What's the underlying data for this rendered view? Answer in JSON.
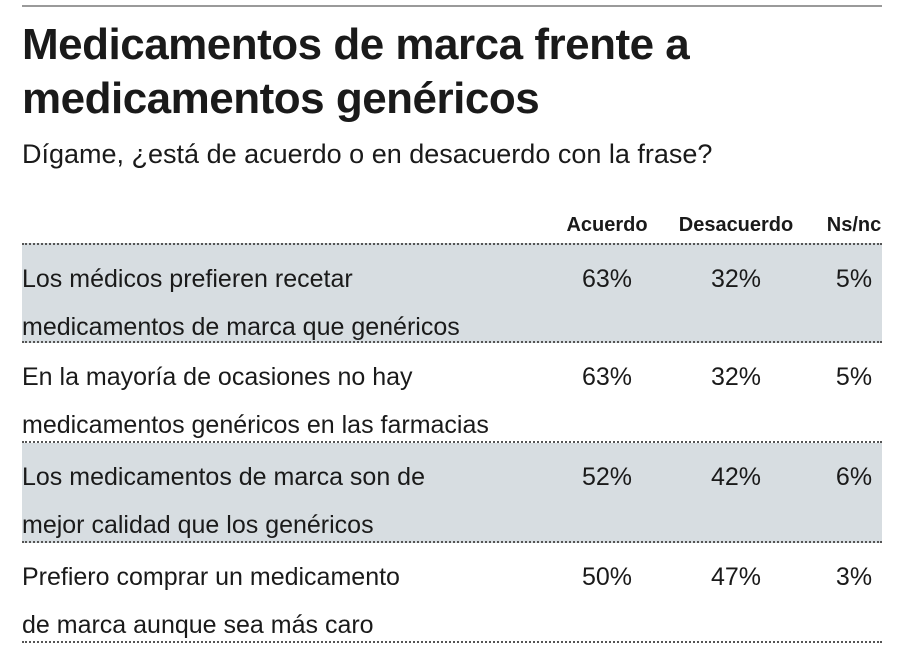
{
  "header": {
    "title": [
      "Medicamentos de marca frente a",
      "medicamentos genéricos"
    ],
    "subtitle": "Dígame, ¿está de acuerdo o en desacuerdo con la frase?"
  },
  "table": {
    "columns": [
      "Acuerdo",
      "Desacuerdo",
      "Ns/nc"
    ],
    "rows": [
      {
        "label": [
          "Los médicos prefieren recetar",
          "medicamentos de marca que genéricos"
        ],
        "cells": [
          "63%",
          "32%",
          "5%"
        ]
      },
      {
        "label": [
          "En la mayoría de ocasiones no hay",
          "medicamentos genéricos en las farmacias"
        ],
        "cells": [
          "63%",
          "32%",
          "5%"
        ]
      },
      {
        "label": [
          "Los medicamentos de marca son de",
          "mejor calidad que los genéricos"
        ],
        "cells": [
          "52%",
          "42%",
          "6%"
        ]
      },
      {
        "label": [
          "Prefiero comprar un medicamento",
          "de marca aunque sea más caro"
        ],
        "cells": [
          "50%",
          "47%",
          "3%"
        ]
      }
    ]
  }
}
